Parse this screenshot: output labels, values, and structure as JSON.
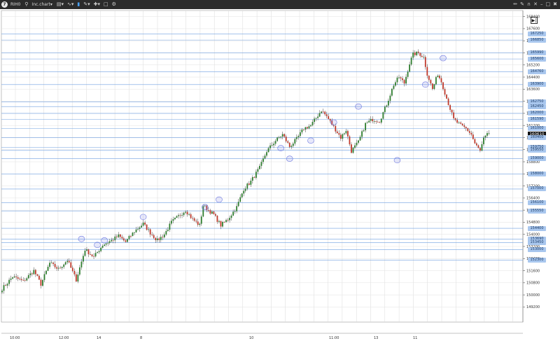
{
  "toolbar": {
    "logo": "7",
    "symbol": "RIH0",
    "chart_type_label": "Inc.chart",
    "icons_left": [
      "search-icon",
      "chart-type-icon",
      "indicators-icon",
      "trades-icon",
      "drawing-icon",
      "crosshair-icon",
      "window-icon",
      "settings-icon"
    ],
    "icons_right": [
      "pencil-icon",
      "brush-icon",
      "magnet-icon",
      "delete-icon",
      "minimize-icon",
      "maximize-icon",
      "close-icon"
    ]
  },
  "chart_data": {
    "type": "candlestick",
    "title": "",
    "xlabel": "",
    "ylabel": "",
    "ylim": [
      148200,
      168800
    ],
    "price_ticks": [
      168400,
      167600,
      166800,
      166000,
      165200,
      164400,
      163600,
      162800,
      162000,
      161200,
      160400,
      159600,
      158800,
      158000,
      157200,
      156400,
      155600,
      154800,
      154000,
      153200,
      152400,
      151600,
      150800,
      150000,
      149200
    ],
    "time_labels": [
      "10:00",
      "12:00",
      "14",
      "8",
      "10",
      "11:00",
      "13",
      "11"
    ],
    "last_price": "160610",
    "level_lines": [
      167250,
      166850,
      165990,
      165600,
      164760,
      163900,
      162750,
      162450,
      162000,
      161590,
      161000,
      160400,
      159750,
      159550,
      159000,
      158000,
      157000,
      156100,
      155550,
      154400,
      153690,
      153450,
      153000,
      152300
    ],
    "level_tags": [
      "167250",
      "166850",
      "165990",
      "165600",
      "164760",
      "163900",
      "162750",
      "162450",
      "162000",
      "161590",
      "161000",
      "160400",
      "159750",
      "159550",
      "159000",
      "158000",
      "157000",
      "156100",
      "155550",
      "154400",
      "153690",
      "153450",
      "153000",
      "152300"
    ],
    "anchor_points": [
      [
        0,
        150400
      ],
      [
        6,
        151200
      ],
      [
        12,
        150900
      ],
      [
        18,
        151600
      ],
      [
        22,
        150700
      ],
      [
        27,
        152100
      ],
      [
        32,
        151700
      ],
      [
        37,
        152300
      ],
      [
        42,
        151000
      ],
      [
        47,
        153000
      ],
      [
        52,
        152500
      ],
      [
        57,
        153300
      ],
      [
        62,
        153600
      ],
      [
        66,
        153900
      ],
      [
        70,
        153500
      ],
      [
        75,
        154200
      ],
      [
        80,
        154700
      ],
      [
        84,
        154100
      ],
      [
        88,
        153600
      ],
      [
        92,
        154000
      ],
      [
        96,
        154800
      ],
      [
        100,
        155200
      ],
      [
        104,
        155600
      ],
      [
        108,
        155000
      ],
      [
        112,
        154600
      ],
      [
        114,
        155900
      ],
      [
        116,
        155700
      ],
      [
        120,
        155300
      ],
      [
        124,
        154600
      ],
      [
        128,
        155000
      ],
      [
        133,
        155800
      ],
      [
        137,
        157000
      ],
      [
        141,
        157500
      ],
      [
        146,
        158400
      ],
      [
        150,
        159500
      ],
      [
        155,
        160200
      ],
      [
        159,
        160600
      ],
      [
        163,
        159800
      ],
      [
        167,
        160300
      ],
      [
        171,
        161000
      ],
      [
        175,
        161200
      ],
      [
        178,
        161700
      ],
      [
        181,
        162200
      ],
      [
        184,
        161800
      ],
      [
        188,
        161100
      ],
      [
        192,
        160400
      ],
      [
        195,
        160900
      ],
      [
        198,
        159500
      ],
      [
        202,
        160100
      ],
      [
        206,
        161300
      ],
      [
        210,
        161600
      ],
      [
        214,
        161500
      ],
      [
        218,
        162600
      ],
      [
        222,
        163900
      ],
      [
        225,
        164400
      ],
      [
        228,
        164000
      ],
      [
        231,
        165300
      ],
      [
        233,
        165900
      ],
      [
        236,
        166000
      ],
      [
        239,
        165700
      ],
      [
        241,
        164600
      ],
      [
        244,
        163600
      ],
      [
        247,
        164600
      ],
      [
        249,
        164100
      ],
      [
        252,
        163000
      ],
      [
        256,
        161600
      ],
      [
        260,
        161200
      ],
      [
        263,
        161000
      ],
      [
        266,
        160600
      ],
      [
        268,
        160000
      ],
      [
        271,
        159500
      ],
      [
        273,
        160300
      ],
      [
        276,
        160700
      ]
    ],
    "highlighted_points": [
      [
        45,
        153700
      ],
      [
        54,
        153300
      ],
      [
        58,
        153600
      ],
      [
        80,
        155150
      ],
      [
        115,
        155800
      ],
      [
        123,
        156300
      ],
      [
        158,
        159700
      ],
      [
        163,
        159000
      ],
      [
        175,
        160200
      ],
      [
        188,
        161400
      ],
      [
        202,
        162450
      ],
      [
        224,
        158900
      ],
      [
        240,
        163900
      ],
      [
        250,
        165650
      ]
    ]
  }
}
